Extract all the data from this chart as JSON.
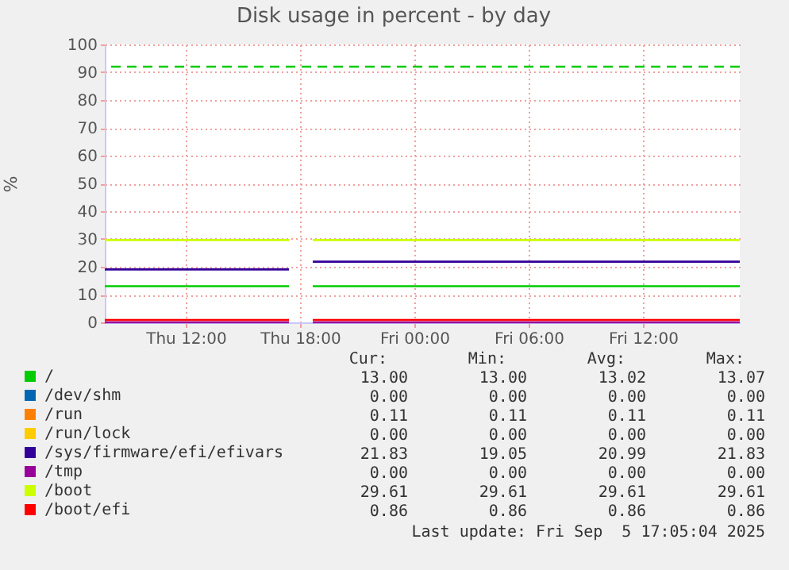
{
  "chart_data": {
    "type": "line",
    "title": "Disk usage in percent - by day",
    "ylabel": "%",
    "x": [
      "2025-09-04T07:45",
      "2025-09-04T17:25",
      "2025-09-04T18:00",
      "2025-09-04T18:40",
      "2025-09-05T17:05"
    ],
    "xlim": [
      "2025-09-04T07:45",
      "2025-09-05T17:05"
    ],
    "xticks": [
      {
        "value": "2025-09-04T12:00",
        "label": "Thu 12:00"
      },
      {
        "value": "2025-09-04T18:00",
        "label": "Thu 18:00"
      },
      {
        "value": "2025-09-05T00:00",
        "label": "Fri 00:00"
      },
      {
        "value": "2025-09-05T06:00",
        "label": "Fri 06:00"
      },
      {
        "value": "2025-09-05T12:00",
        "label": "Fri 12:00"
      }
    ],
    "ylim": [
      0,
      100
    ],
    "yticks": [
      0,
      10,
      20,
      30,
      40,
      50,
      60,
      70,
      80,
      90,
      100
    ],
    "series": [
      {
        "name": "/",
        "color": "#00cc00",
        "values": [
          13,
          13,
          null,
          13,
          13
        ]
      },
      {
        "name": "/dev/shm",
        "color": "#0066b3",
        "values": [
          null,
          null,
          null,
          null,
          null
        ]
      },
      {
        "name": "/run",
        "color": "#ff8000",
        "values": [
          null,
          null,
          null,
          null,
          null
        ]
      },
      {
        "name": "/run/lock",
        "color": "#ffcc00",
        "values": [
          null,
          null,
          null,
          null,
          null
        ]
      },
      {
        "name": "/sys/firmware/efi/efivars",
        "color": "#330099",
        "values": [
          19.05,
          19.05,
          null,
          21.83,
          21.83
        ]
      },
      {
        "name": "/tmp",
        "color": "#990099",
        "values": [
          0,
          0,
          null,
          0,
          0
        ]
      },
      {
        "name": "/boot",
        "color": "#ccff00",
        "values": [
          29.61,
          29.61,
          null,
          29.61,
          29.61
        ]
      },
      {
        "name": "/boot/efi",
        "color": "#ff0000",
        "values": [
          0.86,
          0.86,
          null,
          0.86,
          0.86
        ]
      }
    ],
    "ref_lines": [
      {
        "axis": "y",
        "value": 92,
        "color": "#00cc00",
        "line_style": "dashed"
      }
    ],
    "grid": true,
    "legend": "bottom left",
    "annotations": [
      "Cur:",
      "Min:",
      "Avg:",
      "Max:",
      "13.00",
      "13.00",
      "13.02",
      "13.07",
      "0.00",
      "0.00",
      "0.00",
      "0.00",
      "0.11",
      "0.11",
      "0.11",
      "0.11",
      "0.00",
      "0.00",
      "0.00",
      "0.00",
      "21.83",
      "19.05",
      "20.99",
      "21.83",
      "0.00",
      "0.00",
      "0.00",
      "0.00",
      "29.61",
      "29.61",
      "29.61",
      "29.61",
      "0.86",
      "0.86",
      "0.86",
      "0.86",
      "Last update: Fri Sep  5 17:05:04 2025"
    ]
  }
}
